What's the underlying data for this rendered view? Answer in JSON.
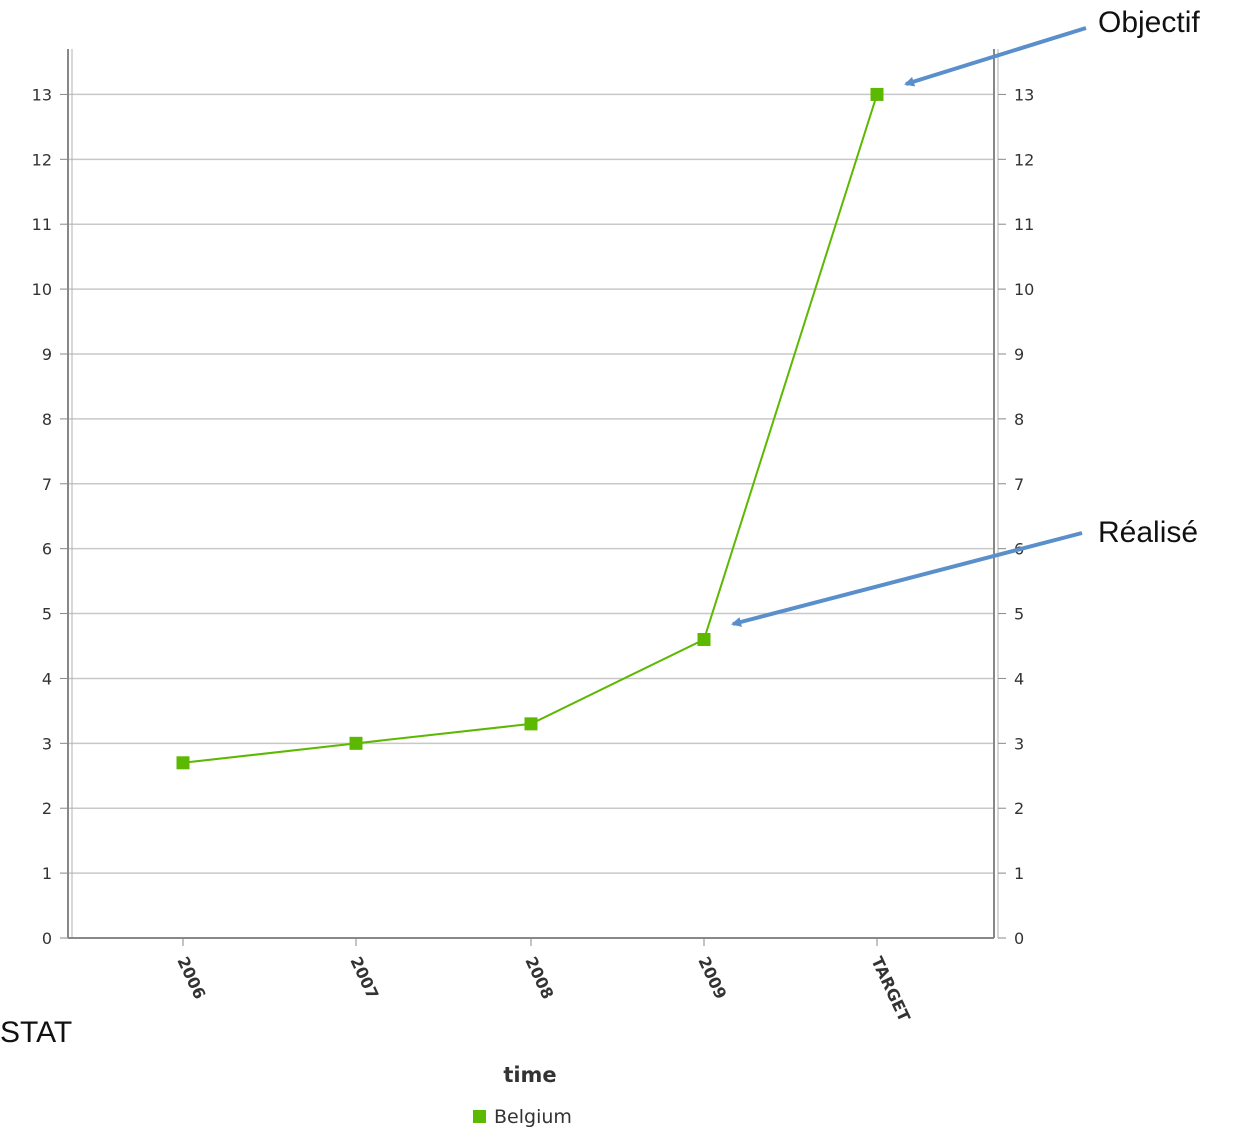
{
  "chart_data": {
    "type": "line",
    "categories": [
      "2006",
      "2007",
      "2008",
      "2009",
      "TARGET"
    ],
    "series": [
      {
        "name": "Belgium",
        "values": [
          2.7,
          3.0,
          3.3,
          4.6,
          13.0
        ],
        "color": "#5cb800"
      }
    ],
    "xlabel": "time",
    "ylabel": "",
    "ylim": [
      0,
      13.7
    ],
    "yticks": [
      0,
      1,
      2,
      3,
      4,
      5,
      6,
      7,
      8,
      9,
      10,
      11,
      12,
      13
    ],
    "y_axis_right": true,
    "grid": true,
    "legend": {
      "position": "bottom",
      "entries": [
        "Belgium"
      ]
    },
    "annotations": [
      {
        "text": "Objectif",
        "target_category": "TARGET",
        "target_value": 13.0
      },
      {
        "text": "Réalisé",
        "target_category": "2009",
        "target_value": 4.6
      }
    ],
    "footer_fragment": "STAT"
  },
  "colors": {
    "series": "#5cb800",
    "arrow": "#5b8fcc",
    "grid": "#c8c8c8",
    "axis": "#888888"
  }
}
